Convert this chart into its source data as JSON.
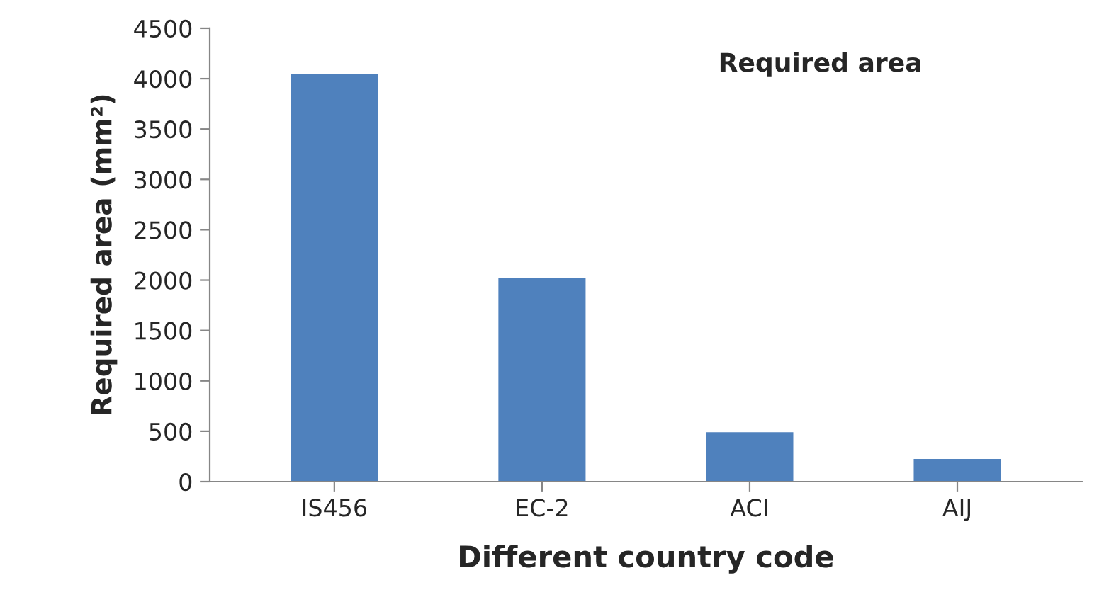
{
  "chart_data": {
    "type": "bar",
    "title": "Required area",
    "xlabel": "Different country code",
    "ylabel": "Required area (mm²)",
    "categories": [
      "IS456",
      "EC-2",
      "ACI",
      "AIJ"
    ],
    "values": [
      4050,
      2025,
      490,
      225
    ],
    "color": "#4f81bd",
    "ylim": [
      0,
      4500
    ],
    "yticks": [
      0,
      500,
      1000,
      1500,
      2000,
      2500,
      3000,
      3500,
      4000,
      4500
    ],
    "grid": false,
    "legend": false
  }
}
